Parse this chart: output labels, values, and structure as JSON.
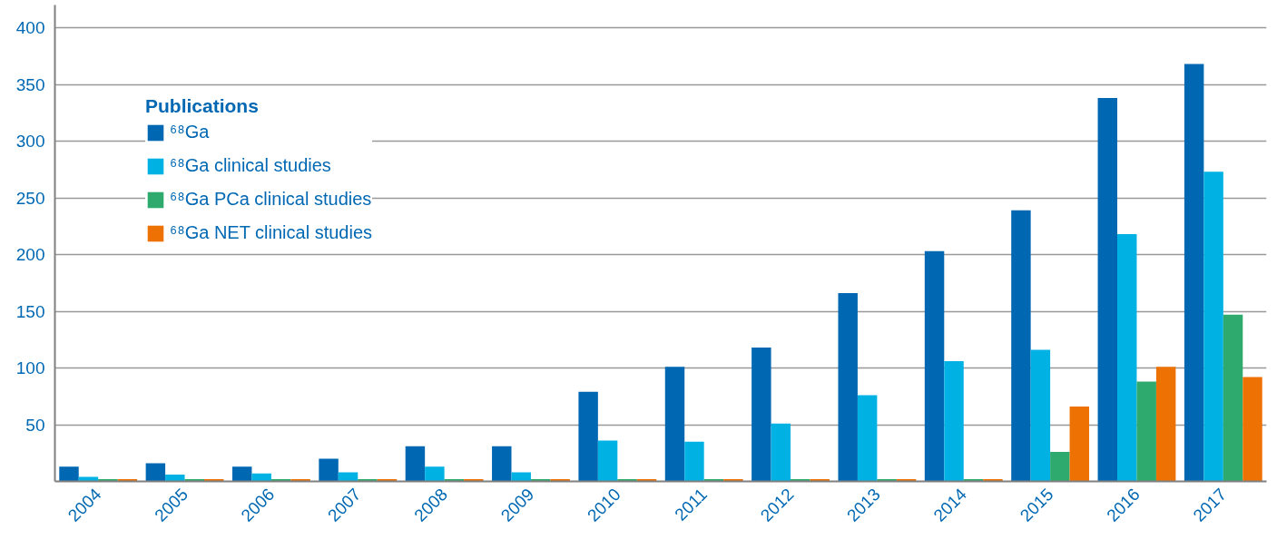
{
  "chart_data": {
    "type": "bar",
    "categories": [
      "2004",
      "2005",
      "2006",
      "2007",
      "2008",
      "2009",
      "2010",
      "2011",
      "2012",
      "2013",
      "2014",
      "2015",
      "2016",
      "2017"
    ],
    "series": [
      {
        "name": "⁶⁸Ga",
        "color": "#0068b3",
        "values": [
          13,
          16,
          13,
          20,
          31,
          31,
          79,
          101,
          118,
          166,
          203,
          239,
          338,
          368
        ]
      },
      {
        "name": "⁶⁸Ga clinical studies",
        "color": "#00b2e3",
        "values": [
          4,
          6,
          7,
          8,
          13,
          8,
          36,
          35,
          51,
          76,
          106,
          116,
          218,
          273
        ]
      },
      {
        "name": "⁶⁸Ga PCa clinical studies",
        "color": "#2eaa6e",
        "values": [
          2,
          2,
          2,
          2,
          2,
          2,
          2,
          2,
          2,
          2,
          2,
          26,
          88,
          147
        ]
      },
      {
        "name": "⁶⁸Ga NET clinical studies",
        "color": "#ee7203",
        "values": [
          2,
          2,
          2,
          2,
          2,
          2,
          2,
          2,
          2,
          2,
          2,
          66,
          101,
          92
        ]
      }
    ],
    "legend_title": "Publications",
    "ylim": [
      0,
      420
    ],
    "yticks": [
      50,
      100,
      150,
      200,
      250,
      300,
      350,
      400
    ],
    "grid": "y",
    "legend": "top left"
  }
}
